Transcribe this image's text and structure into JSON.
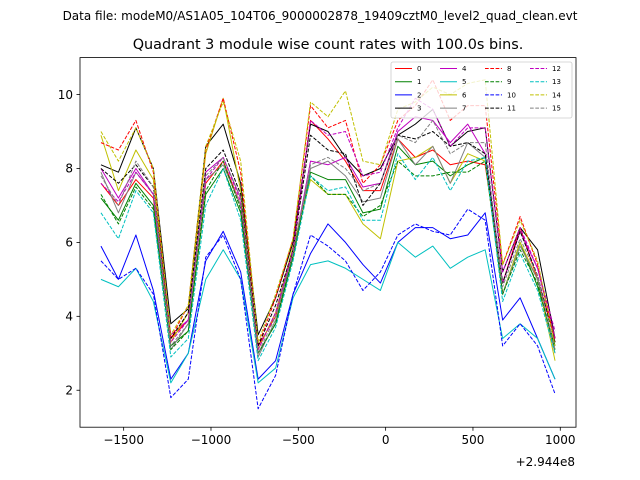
{
  "figure": {
    "suptitle": "Data file: modeM0/AS1A05_104T06_9000002878_19409cztM0_level2_quad_clean.evt"
  },
  "chart_data": {
    "type": "line",
    "title": "Quadrant 3 module wise count rates with 100.0s bins.",
    "xlabel": "",
    "ylabel": "",
    "x_offset_label": "+2.944e8",
    "xlim": [
      -1750,
      1090
    ],
    "ylim": [
      1.0,
      11.0
    ],
    "x_ticks": [
      -1500,
      -1000,
      -500,
      0,
      500,
      1000
    ],
    "x_tick_labels": [
      "−1500",
      "−1000",
      "−500",
      "0",
      "500",
      "1000"
    ],
    "y_ticks": [
      2,
      4,
      6,
      8,
      10
    ],
    "y_tick_labels": [
      "2",
      "4",
      "6",
      "8",
      "10"
    ],
    "x": [
      -1630,
      -1530,
      -1430,
      -1330,
      -1230,
      -1130,
      -1030,
      -930,
      -830,
      -730,
      -630,
      -530,
      -430,
      -330,
      -230,
      -130,
      -30,
      70,
      170,
      270,
      370,
      470,
      570,
      670,
      770,
      870,
      970
    ],
    "legend": {
      "location": "upper-right",
      "columns": 4,
      "entries": [
        "0",
        "1",
        "2",
        "3",
        "4",
        "5",
        "6",
        "7",
        "8",
        "9",
        "10",
        "11",
        "12",
        "13",
        "14",
        "15"
      ]
    },
    "series": [
      {
        "name": "0",
        "color": "#ff0000",
        "style": "solid",
        "values": [
          7.6,
          7.0,
          7.7,
          7.2,
          3.4,
          3.9,
          7.6,
          8.2,
          7.0,
          3.2,
          4.0,
          5.8,
          9.3,
          8.8,
          8.2,
          7.4,
          7.4,
          8.8,
          8.3,
          8.5,
          8.1,
          8.2,
          8.1,
          4.9,
          6.4,
          5.0,
          3.4
        ]
      },
      {
        "name": "1",
        "color": "#008000",
        "style": "solid",
        "values": [
          7.2,
          6.6,
          7.6,
          7.0,
          3.2,
          3.6,
          7.3,
          8.0,
          6.8,
          3.0,
          3.8,
          5.6,
          7.9,
          7.7,
          7.7,
          6.8,
          6.9,
          8.6,
          8.1,
          8.2,
          7.8,
          8.1,
          8.3,
          4.6,
          6.0,
          4.8,
          3.2
        ]
      },
      {
        "name": "2",
        "color": "#0000ff",
        "style": "solid",
        "values": [
          5.9,
          5.0,
          6.2,
          4.7,
          2.3,
          3.0,
          5.5,
          6.3,
          5.2,
          2.3,
          2.8,
          4.6,
          5.7,
          6.5,
          6.0,
          5.4,
          4.9,
          6.0,
          6.4,
          6.4,
          6.1,
          6.2,
          6.8,
          3.9,
          4.5,
          3.4,
          2.3
        ]
      },
      {
        "name": "3",
        "color": "#000000",
        "style": "solid",
        "values": [
          8.1,
          7.9,
          9.1,
          8.0,
          3.8,
          4.2,
          8.6,
          9.2,
          7.6,
          3.5,
          4.5,
          6.0,
          9.2,
          9.0,
          8.3,
          7.8,
          8.0,
          8.9,
          9.2,
          9.6,
          8.6,
          9.0,
          9.1,
          5.2,
          6.4,
          5.8,
          3.4
        ]
      },
      {
        "name": "4",
        "color": "#c000c0",
        "style": "solid",
        "values": [
          8.0,
          7.2,
          8.0,
          7.3,
          3.5,
          3.9,
          7.9,
          8.3,
          7.2,
          3.1,
          4.1,
          5.7,
          8.2,
          8.1,
          8.3,
          7.5,
          7.6,
          9.0,
          9.4,
          9.3,
          8.7,
          9.2,
          8.4,
          4.9,
          6.3,
          5.3,
          3.4
        ]
      },
      {
        "name": "5",
        "color": "#00c0c0",
        "style": "solid",
        "values": [
          5.0,
          4.8,
          5.3,
          4.4,
          2.2,
          3.0,
          5.0,
          5.8,
          5.0,
          2.2,
          2.6,
          4.5,
          5.4,
          5.5,
          5.3,
          5.0,
          4.7,
          6.0,
          5.6,
          5.9,
          5.3,
          5.6,
          5.8,
          3.4,
          3.8,
          3.4,
          2.3
        ]
      },
      {
        "name": "6",
        "color": "#c0c000",
        "style": "solid",
        "values": [
          8.9,
          7.4,
          8.5,
          7.7,
          3.3,
          4.1,
          8.4,
          9.9,
          7.4,
          3.1,
          4.1,
          5.9,
          7.7,
          7.3,
          7.3,
          6.5,
          6.1,
          8.2,
          8.3,
          8.6,
          7.6,
          8.4,
          8.2,
          4.6,
          6.0,
          5.0,
          2.8
        ]
      },
      {
        "name": "7",
        "color": "#808080",
        "style": "solid",
        "values": [
          7.9,
          6.8,
          7.9,
          7.3,
          3.1,
          3.8,
          7.7,
          8.1,
          7.0,
          2.9,
          3.9,
          5.7,
          8.0,
          8.2,
          7.8,
          7.1,
          7.2,
          8.8,
          8.1,
          8.6,
          7.6,
          8.7,
          8.3,
          4.6,
          5.9,
          5.0,
          3.0
        ]
      },
      {
        "name": "8",
        "color": "#ff0000",
        "style": "dashed",
        "values": [
          8.7,
          8.5,
          9.3,
          7.9,
          3.4,
          4.3,
          8.5,
          9.9,
          7.9,
          3.2,
          4.5,
          6.1,
          9.7,
          9.1,
          9.3,
          7.6,
          8.1,
          9.3,
          9.7,
          10.4,
          9.3,
          9.7,
          9.7,
          5.4,
          6.7,
          5.4,
          3.3
        ]
      },
      {
        "name": "9",
        "color": "#008000",
        "style": "dashed",
        "values": [
          7.3,
          6.5,
          7.5,
          6.9,
          3.1,
          3.6,
          7.4,
          8.2,
          6.9,
          3.0,
          3.8,
          5.7,
          7.8,
          7.3,
          7.3,
          6.7,
          7.0,
          8.2,
          7.8,
          7.8,
          7.9,
          7.9,
          8.2,
          4.6,
          5.8,
          4.9,
          3.1
        ]
      },
      {
        "name": "10",
        "color": "#0000ff",
        "style": "dashed",
        "values": [
          5.5,
          5.0,
          5.3,
          4.6,
          1.8,
          2.3,
          5.6,
          6.2,
          5.0,
          1.5,
          2.4,
          4.6,
          6.2,
          5.9,
          5.5,
          4.7,
          5.2,
          6.2,
          6.5,
          6.3,
          6.2,
          6.9,
          6.6,
          3.2,
          3.8,
          3.2,
          1.9
        ]
      },
      {
        "name": "11",
        "color": "#000000",
        "style": "dashed",
        "values": [
          8.0,
          7.6,
          8.1,
          7.5,
          3.4,
          4.1,
          8.0,
          8.5,
          7.3,
          3.2,
          4.3,
          5.8,
          8.9,
          8.5,
          8.4,
          7.0,
          7.6,
          8.9,
          8.8,
          9.0,
          8.6,
          8.7,
          8.4,
          4.9,
          6.3,
          5.1,
          3.3
        ]
      },
      {
        "name": "12",
        "color": "#c000c0",
        "style": "dashed",
        "values": [
          7.6,
          7.1,
          7.9,
          7.3,
          3.3,
          3.9,
          7.7,
          8.3,
          7.1,
          3.1,
          4.1,
          5.8,
          9.3,
          8.9,
          9.0,
          7.8,
          7.9,
          9.1,
          9.9,
          9.6,
          8.6,
          9.1,
          9.1,
          5.2,
          6.4,
          5.3,
          3.6
        ]
      },
      {
        "name": "13",
        "color": "#00c0c0",
        "style": "dashed",
        "values": [
          6.8,
          6.1,
          7.4,
          6.8,
          2.9,
          3.4,
          7.0,
          8.0,
          6.6,
          2.8,
          3.7,
          5.5,
          7.8,
          7.4,
          7.5,
          6.6,
          6.6,
          8.4,
          7.7,
          8.3,
          7.4,
          8.2,
          8.3,
          4.4,
          5.7,
          4.7,
          3.0
        ]
      },
      {
        "name": "14",
        "color": "#c0c000",
        "style": "dashed",
        "values": [
          9.0,
          8.2,
          9.1,
          8.0,
          3.5,
          4.3,
          8.6,
          9.8,
          8.2,
          3.3,
          4.6,
          6.1,
          9.8,
          9.4,
          10.1,
          8.2,
          8.1,
          9.6,
          9.8,
          10.2,
          10.0,
          10.3,
          10.4,
          5.4,
          6.6,
          5.5,
          3.2
        ]
      },
      {
        "name": "15",
        "color": "#808080",
        "style": "dashed",
        "values": [
          7.8,
          7.0,
          8.2,
          7.5,
          3.2,
          3.8,
          7.8,
          8.3,
          7.2,
          3.0,
          4.0,
          5.7,
          8.1,
          8.3,
          8.0,
          7.4,
          7.6,
          8.9,
          8.7,
          9.3,
          8.4,
          8.7,
          8.7,
          4.8,
          6.1,
          5.1,
          3.1
        ]
      }
    ]
  }
}
